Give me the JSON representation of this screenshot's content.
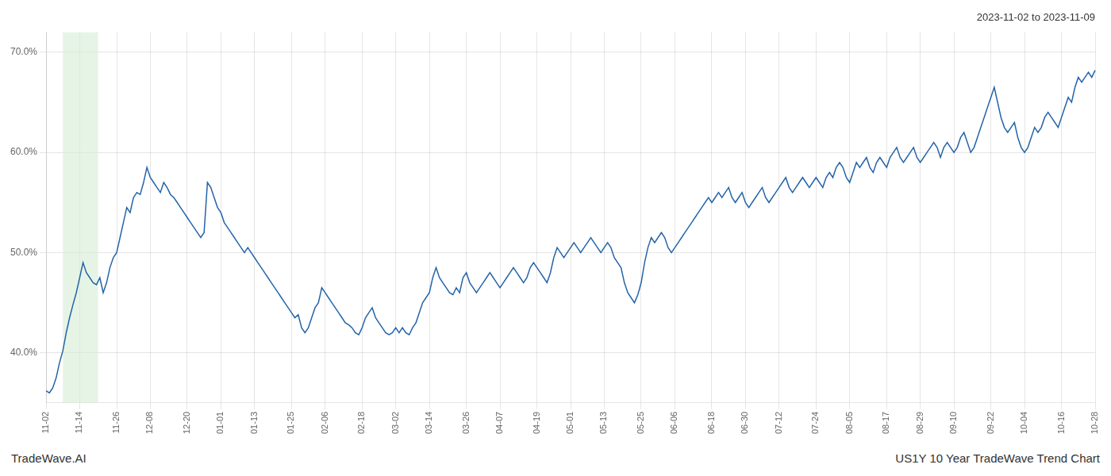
{
  "chart_data": {
    "type": "line",
    "title": "2023-11-02 to 2023-11-09",
    "footer_left": "TradeWave.AI",
    "footer_right": "US1Y 10 Year TradeWave Trend Chart",
    "color": "#2464a8",
    "grid": true,
    "ylim": [
      35.0,
      72.0
    ],
    "yticks": [
      {
        "value": 40.0,
        "label": "40.0%"
      },
      {
        "value": 50.0,
        "label": "50.0%"
      },
      {
        "value": 60.0,
        "label": "60.0%"
      },
      {
        "value": 70.0,
        "label": "70.0%"
      }
    ],
    "highlight": {
      "range": [
        0.5,
        1.5
      ],
      "color": "#d6ecd6"
    },
    "categories": [
      "11-02",
      null,
      null,
      null,
      null,
      null,
      null,
      null,
      null,
      null,
      "11-14",
      null,
      null,
      null,
      null,
      null,
      null,
      null,
      null,
      null,
      null,
      "11-26",
      null,
      null,
      null,
      null,
      null,
      null,
      null,
      null,
      null,
      "12-08",
      null,
      null,
      null,
      null,
      null,
      null,
      null,
      null,
      null,
      null,
      "12-20",
      null,
      null,
      null,
      null,
      null,
      null,
      null,
      null,
      null,
      "01-01",
      null,
      null,
      null,
      null,
      null,
      null,
      null,
      null,
      null,
      "01-13",
      null,
      null,
      null,
      null,
      null,
      null,
      null,
      null,
      null,
      null,
      "01-25",
      null,
      null,
      null,
      null,
      null,
      null,
      null,
      null,
      null,
      "02-06",
      null,
      null,
      null,
      null,
      null,
      null,
      null,
      null,
      null,
      null,
      "02-18",
      null,
      null,
      null,
      null,
      null,
      null,
      null,
      null,
      null,
      "03-02",
      null,
      null,
      null,
      null,
      null,
      null,
      null,
      null,
      null,
      "03-14",
      null,
      null,
      null,
      null,
      null,
      null,
      null,
      null,
      null,
      null,
      "03-26",
      null,
      null,
      null,
      null,
      null,
      null,
      null,
      null,
      null,
      "04-07",
      null,
      null,
      null,
      null,
      null,
      null,
      null,
      null,
      null,
      null,
      "04-19",
      null,
      null,
      null,
      null,
      null,
      null,
      null,
      null,
      null,
      "05-01",
      null,
      null,
      null,
      null,
      null,
      null,
      null,
      null,
      null,
      "05-13",
      null,
      null,
      null,
      null,
      null,
      null,
      null,
      null,
      null,
      null,
      "05-25",
      null,
      null,
      null,
      null,
      null,
      null,
      null,
      null,
      null,
      "06-06",
      null,
      null,
      null,
      null,
      null,
      null,
      null,
      null,
      null,
      null,
      "06-18",
      null,
      null,
      null,
      null,
      null,
      null,
      null,
      null,
      null,
      "06-30",
      null,
      null,
      null,
      null,
      null,
      null,
      null,
      null,
      null,
      "07-12",
      null,
      null,
      null,
      null,
      null,
      null,
      null,
      null,
      null,
      null,
      "07-24",
      null,
      null,
      null,
      null,
      null,
      null,
      null,
      null,
      null,
      "08-05",
      null,
      null,
      null,
      null,
      null,
      null,
      null,
      null,
      null,
      null,
      "08-17",
      null,
      null,
      null,
      null,
      null,
      null,
      null,
      null,
      null,
      "08-29",
      null,
      null,
      null,
      null,
      null,
      null,
      null,
      null,
      null,
      "09-10",
      null,
      null,
      null,
      null,
      null,
      null,
      null,
      null,
      null,
      null,
      "09-22",
      null,
      null,
      null,
      null,
      null,
      null,
      null,
      null,
      null,
      "10-04",
      null,
      null,
      null,
      null,
      null,
      null,
      null,
      null,
      null,
      null,
      "10-16",
      null,
      null,
      null,
      null,
      null,
      null,
      null,
      null,
      null,
      "10-28"
    ],
    "values": [
      36.2,
      36.0,
      36.5,
      37.5,
      39.0,
      40.2,
      42.0,
      43.5,
      44.8,
      46.0,
      47.5,
      49.0,
      48.0,
      47.5,
      47.0,
      46.8,
      47.5,
      46.0,
      47.0,
      48.5,
      49.5,
      50.0,
      51.5,
      53.0,
      54.5,
      54.0,
      55.5,
      56.0,
      55.8,
      57.0,
      58.5,
      57.5,
      57.0,
      56.5,
      56.0,
      57.0,
      56.5,
      55.8,
      55.5,
      55.0,
      54.5,
      54.0,
      53.5,
      53.0,
      52.5,
      52.0,
      51.5,
      52.0,
      57.0,
      56.5,
      55.5,
      54.5,
      54.0,
      53.0,
      52.5,
      52.0,
      51.5,
      51.0,
      50.5,
      50.0,
      50.5,
      50.0,
      49.5,
      49.0,
      48.5,
      48.0,
      47.5,
      47.0,
      46.5,
      46.0,
      45.5,
      45.0,
      44.5,
      44.0,
      43.5,
      43.8,
      42.5,
      42.0,
      42.5,
      43.5,
      44.5,
      45.0,
      46.5,
      46.0,
      45.5,
      45.0,
      44.5,
      44.0,
      43.5,
      43.0,
      42.8,
      42.5,
      42.0,
      41.8,
      42.5,
      43.5,
      44.0,
      44.5,
      43.5,
      43.0,
      42.5,
      42.0,
      41.8,
      42.0,
      42.5,
      42.0,
      42.5,
      42.0,
      41.8,
      42.5,
      43.0,
      44.0,
      45.0,
      45.5,
      46.0,
      47.5,
      48.5,
      47.5,
      47.0,
      46.5,
      46.0,
      45.8,
      46.5,
      46.0,
      47.5,
      48.0,
      47.0,
      46.5,
      46.0,
      46.5,
      47.0,
      47.5,
      48.0,
      47.5,
      47.0,
      46.5,
      47.0,
      47.5,
      48.0,
      48.5,
      48.0,
      47.5,
      47.0,
      47.5,
      48.5,
      49.0,
      48.5,
      48.0,
      47.5,
      47.0,
      48.0,
      49.5,
      50.5,
      50.0,
      49.5,
      50.0,
      50.5,
      51.0,
      50.5,
      50.0,
      50.5,
      51.0,
      51.5,
      51.0,
      50.5,
      50.0,
      50.5,
      51.0,
      50.5,
      49.5,
      49.0,
      48.5,
      47.0,
      46.0,
      45.5,
      45.0,
      45.8,
      47.0,
      49.0,
      50.5,
      51.5,
      51.0,
      51.5,
      52.0,
      51.5,
      50.5,
      50.0,
      50.5,
      51.0,
      51.5,
      52.0,
      52.5,
      53.0,
      53.5,
      54.0,
      54.5,
      55.0,
      55.5,
      55.0,
      55.5,
      56.0,
      55.5,
      56.0,
      56.5,
      55.5,
      55.0,
      55.5,
      56.0,
      55.0,
      54.5,
      55.0,
      55.5,
      56.0,
      56.5,
      55.5,
      55.0,
      55.5,
      56.0,
      56.5,
      57.0,
      57.5,
      56.5,
      56.0,
      56.5,
      57.0,
      57.5,
      57.0,
      56.5,
      57.0,
      57.5,
      57.0,
      56.5,
      57.5,
      58.0,
      57.5,
      58.5,
      59.0,
      58.5,
      57.5,
      57.0,
      58.0,
      59.0,
      58.5,
      59.0,
      59.5,
      58.5,
      58.0,
      59.0,
      59.5,
      59.0,
      58.5,
      59.5,
      60.0,
      60.5,
      59.5,
      59.0,
      59.5,
      60.0,
      60.5,
      59.5,
      59.0,
      59.5,
      60.0,
      60.5,
      61.0,
      60.5,
      59.5,
      60.5,
      61.0,
      60.5,
      60.0,
      60.5,
      61.5,
      62.0,
      61.0,
      60.0,
      60.5,
      61.5,
      62.5,
      63.5,
      64.5,
      65.5,
      66.5,
      65.0,
      63.5,
      62.5,
      62.0,
      62.5,
      63.0,
      61.5,
      60.5,
      60.0,
      60.5,
      61.5,
      62.5,
      62.0,
      62.5,
      63.5,
      64.0,
      63.5,
      63.0,
      62.5,
      63.5,
      64.5,
      65.5,
      65.0,
      66.5,
      67.5,
      67.0,
      67.5,
      68.0,
      67.5,
      68.2
    ]
  }
}
